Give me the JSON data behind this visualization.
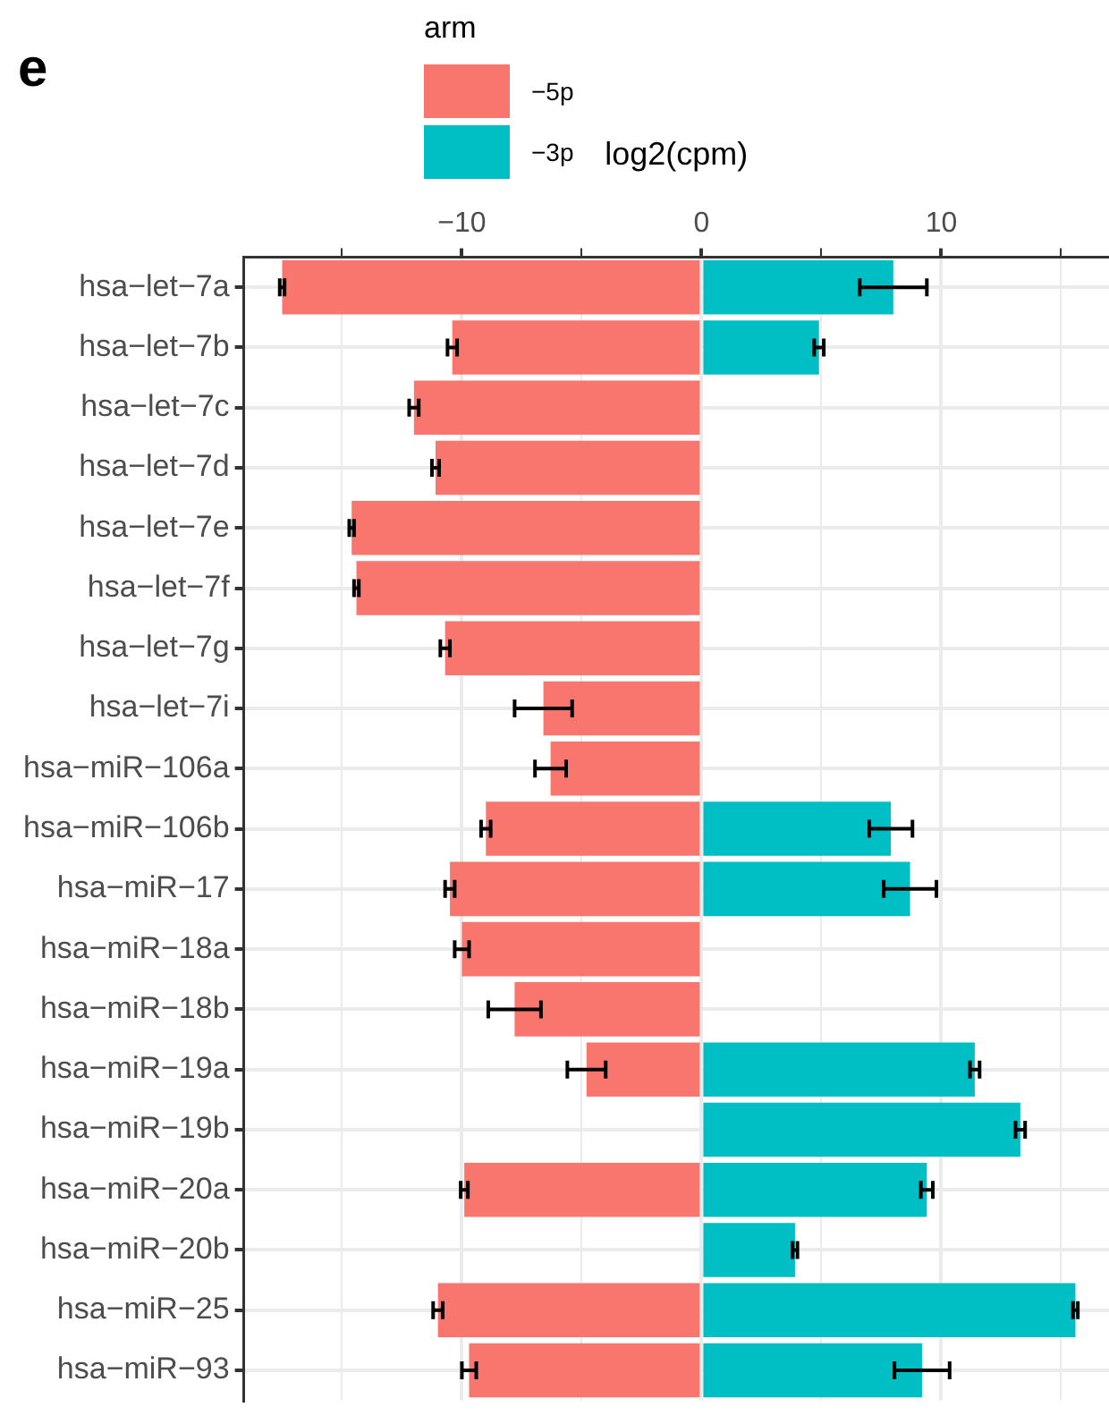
{
  "chart_data": {
    "type": "bar",
    "orientation": "horizontal",
    "stacked": true,
    "xlabel": "log2(cpm)",
    "legend_title": "arm",
    "annotations": [
      "e"
    ],
    "categories": [
      "hsa−let−7a",
      "hsa−let−7b",
      "hsa−let−7c",
      "hsa−let−7d",
      "hsa−let−7e",
      "hsa−let−7f",
      "hsa−let−7g",
      "hsa−let−7i",
      "hsa−miR−106a",
      "hsa−miR−106b",
      "hsa−miR−17",
      "hsa−miR−18a",
      "hsa−miR−18b",
      "hsa−miR−19a",
      "hsa−miR−19b",
      "hsa−miR−20a",
      "hsa−miR−20b",
      "hsa−miR−25",
      "hsa−miR−93"
    ],
    "series": [
      {
        "name": "−5p",
        "color": "#f8766d",
        "values": [
          -17.5,
          -10.4,
          -12.0,
          -11.1,
          -14.6,
          -14.4,
          -10.7,
          -6.6,
          -6.3,
          -9.0,
          -10.5,
          -10.0,
          -7.8,
          -4.8,
          null,
          -9.9,
          null,
          -11.0,
          -9.7
        ],
        "errors": [
          0.1,
          0.2,
          0.2,
          0.15,
          0.1,
          0.1,
          0.2,
          1.2,
          0.65,
          0.2,
          0.2,
          0.3,
          1.1,
          0.8,
          null,
          0.15,
          null,
          0.2,
          0.3
        ]
      },
      {
        "name": "−3p",
        "color": "#00bfc4",
        "values": [
          8.0,
          4.9,
          null,
          null,
          null,
          null,
          null,
          null,
          null,
          7.9,
          8.7,
          null,
          null,
          11.4,
          13.3,
          9.4,
          3.9,
          15.6,
          9.2
        ],
        "errors": [
          1.4,
          0.2,
          null,
          null,
          null,
          null,
          null,
          null,
          null,
          0.9,
          1.1,
          null,
          null,
          0.2,
          0.2,
          0.25,
          0.1,
          0.1,
          1.15
        ]
      }
    ],
    "xlim": [
      -19.1,
      17
    ],
    "xticks": [
      {
        "value": -15,
        "label": null
      },
      -10,
      {
        "value": -5,
        "label": null
      },
      0,
      {
        "value": 5,
        "label": null
      },
      10,
      {
        "value": 15,
        "label": null
      }
    ],
    "grid": true,
    "legend": "top left"
  }
}
